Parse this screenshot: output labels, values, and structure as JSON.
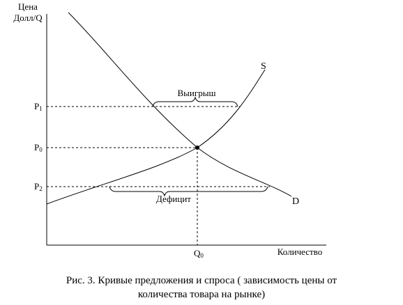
{
  "axes": {
    "y_label_line1": "Цена",
    "y_label_line2": "Долл/Q",
    "x_label": "Количество"
  },
  "price_labels": {
    "p1": "P",
    "p1_sub": "1",
    "p0": "P",
    "p0_sub": "0",
    "p2": "P",
    "p2_sub": "2"
  },
  "quantity_label": "Q",
  "quantity_sub": "0",
  "curves": {
    "supply": "S",
    "demand": "D"
  },
  "annotations": {
    "surplus": "Выигрыш",
    "deficit": "Дефицит"
  },
  "caption": {
    "line1": "Рис. 3. Кривые предложения и спроса ( зависимость цены от",
    "line2": "количества товара на рынке)"
  }
}
